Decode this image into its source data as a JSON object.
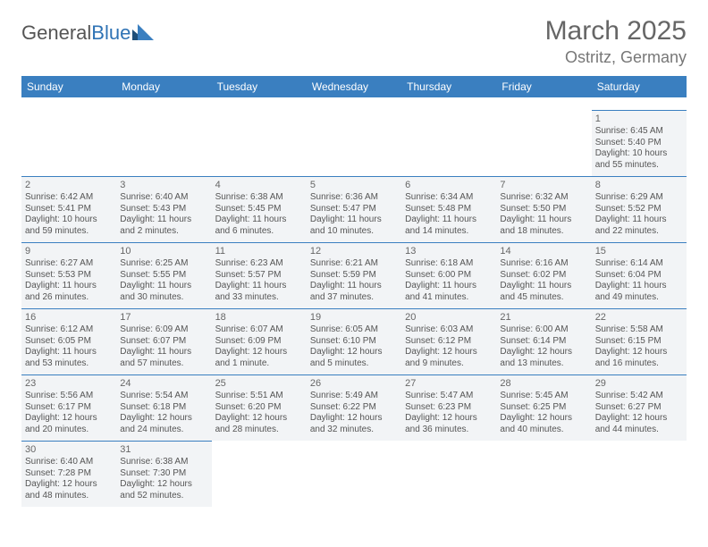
{
  "brand": {
    "name_a": "General",
    "name_b": "Blue"
  },
  "title": "March 2025",
  "location": "Ostritz, Germany",
  "colors": {
    "header_bg": "#3a7fc0",
    "header_fg": "#ffffff",
    "cell_bg": "#f2f4f6",
    "cell_border": "#3a7fc0",
    "text": "#555555",
    "title_color": "#666666"
  },
  "daysOfWeek": [
    "Sunday",
    "Monday",
    "Tuesday",
    "Wednesday",
    "Thursday",
    "Friday",
    "Saturday"
  ],
  "weeks": [
    [
      null,
      null,
      null,
      null,
      null,
      null,
      {
        "n": "1",
        "sr": "6:45 AM",
        "ss": "5:40 PM",
        "dl": "10 hours and 55 minutes."
      }
    ],
    [
      {
        "n": "2",
        "sr": "6:42 AM",
        "ss": "5:41 PM",
        "dl": "10 hours and 59 minutes."
      },
      {
        "n": "3",
        "sr": "6:40 AM",
        "ss": "5:43 PM",
        "dl": "11 hours and 2 minutes."
      },
      {
        "n": "4",
        "sr": "6:38 AM",
        "ss": "5:45 PM",
        "dl": "11 hours and 6 minutes."
      },
      {
        "n": "5",
        "sr": "6:36 AM",
        "ss": "5:47 PM",
        "dl": "11 hours and 10 minutes."
      },
      {
        "n": "6",
        "sr": "6:34 AM",
        "ss": "5:48 PM",
        "dl": "11 hours and 14 minutes."
      },
      {
        "n": "7",
        "sr": "6:32 AM",
        "ss": "5:50 PM",
        "dl": "11 hours and 18 minutes."
      },
      {
        "n": "8",
        "sr": "6:29 AM",
        "ss": "5:52 PM",
        "dl": "11 hours and 22 minutes."
      }
    ],
    [
      {
        "n": "9",
        "sr": "6:27 AM",
        "ss": "5:53 PM",
        "dl": "11 hours and 26 minutes."
      },
      {
        "n": "10",
        "sr": "6:25 AM",
        "ss": "5:55 PM",
        "dl": "11 hours and 30 minutes."
      },
      {
        "n": "11",
        "sr": "6:23 AM",
        "ss": "5:57 PM",
        "dl": "11 hours and 33 minutes."
      },
      {
        "n": "12",
        "sr": "6:21 AM",
        "ss": "5:59 PM",
        "dl": "11 hours and 37 minutes."
      },
      {
        "n": "13",
        "sr": "6:18 AM",
        "ss": "6:00 PM",
        "dl": "11 hours and 41 minutes."
      },
      {
        "n": "14",
        "sr": "6:16 AM",
        "ss": "6:02 PM",
        "dl": "11 hours and 45 minutes."
      },
      {
        "n": "15",
        "sr": "6:14 AM",
        "ss": "6:04 PM",
        "dl": "11 hours and 49 minutes."
      }
    ],
    [
      {
        "n": "16",
        "sr": "6:12 AM",
        "ss": "6:05 PM",
        "dl": "11 hours and 53 minutes."
      },
      {
        "n": "17",
        "sr": "6:09 AM",
        "ss": "6:07 PM",
        "dl": "11 hours and 57 minutes."
      },
      {
        "n": "18",
        "sr": "6:07 AM",
        "ss": "6:09 PM",
        "dl": "12 hours and 1 minute."
      },
      {
        "n": "19",
        "sr": "6:05 AM",
        "ss": "6:10 PM",
        "dl": "12 hours and 5 minutes."
      },
      {
        "n": "20",
        "sr": "6:03 AM",
        "ss": "6:12 PM",
        "dl": "12 hours and 9 minutes."
      },
      {
        "n": "21",
        "sr": "6:00 AM",
        "ss": "6:14 PM",
        "dl": "12 hours and 13 minutes."
      },
      {
        "n": "22",
        "sr": "5:58 AM",
        "ss": "6:15 PM",
        "dl": "12 hours and 16 minutes."
      }
    ],
    [
      {
        "n": "23",
        "sr": "5:56 AM",
        "ss": "6:17 PM",
        "dl": "12 hours and 20 minutes."
      },
      {
        "n": "24",
        "sr": "5:54 AM",
        "ss": "6:18 PM",
        "dl": "12 hours and 24 minutes."
      },
      {
        "n": "25",
        "sr": "5:51 AM",
        "ss": "6:20 PM",
        "dl": "12 hours and 28 minutes."
      },
      {
        "n": "26",
        "sr": "5:49 AM",
        "ss": "6:22 PM",
        "dl": "12 hours and 32 minutes."
      },
      {
        "n": "27",
        "sr": "5:47 AM",
        "ss": "6:23 PM",
        "dl": "12 hours and 36 minutes."
      },
      {
        "n": "28",
        "sr": "5:45 AM",
        "ss": "6:25 PM",
        "dl": "12 hours and 40 minutes."
      },
      {
        "n": "29",
        "sr": "5:42 AM",
        "ss": "6:27 PM",
        "dl": "12 hours and 44 minutes."
      }
    ],
    [
      {
        "n": "30",
        "sr": "6:40 AM",
        "ss": "7:28 PM",
        "dl": "12 hours and 48 minutes."
      },
      {
        "n": "31",
        "sr": "6:38 AM",
        "ss": "7:30 PM",
        "dl": "12 hours and 52 minutes."
      },
      null,
      null,
      null,
      null,
      null
    ]
  ],
  "labels": {
    "sunrise": "Sunrise:",
    "sunset": "Sunset:",
    "daylight": "Daylight:"
  }
}
